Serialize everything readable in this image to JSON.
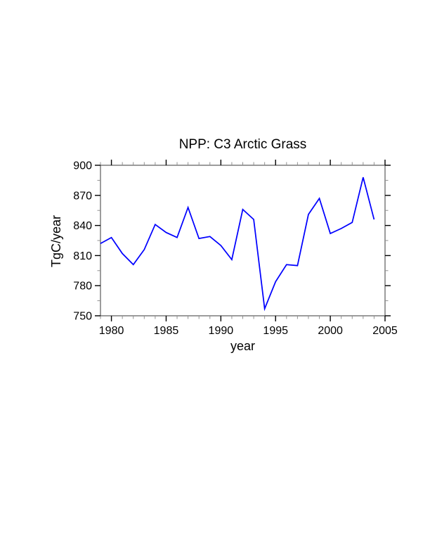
{
  "page": {
    "background": "#ffffff"
  },
  "chart_data": {
    "type": "line",
    "title": "NPP: C3 Arctic Grass",
    "xlabel": "year",
    "ylabel": "TgC/year",
    "x": [
      1979,
      1980,
      1981,
      1982,
      1983,
      1984,
      1985,
      1986,
      1987,
      1988,
      1989,
      1990,
      1991,
      1992,
      1993,
      1994,
      1995,
      1996,
      1997,
      1998,
      1999,
      2000,
      2001,
      2002,
      2003,
      2004
    ],
    "series": [
      {
        "name": "NPP C3 Arctic Grass",
        "values": [
          822,
          828,
          812,
          801,
          816,
          841,
          833,
          828,
          858,
          827,
          829,
          820,
          806,
          856,
          846,
          757,
          784,
          801,
          800,
          851,
          867,
          832,
          837,
          843,
          888,
          846
        ],
        "color": "#0000ff"
      }
    ],
    "xlim": [
      1979,
      2005
    ],
    "ylim": [
      750,
      900
    ],
    "xticks_major": [
      1980,
      1985,
      1990,
      1995,
      2000,
      2005
    ],
    "xtick_minor_step": 1,
    "yticks_major": [
      750,
      780,
      810,
      840,
      870,
      900
    ],
    "yticks_minor": [
      765,
      795,
      825,
      855,
      885
    ],
    "grid": false,
    "legend": "none"
  },
  "style": {
    "line_color": "#0000ff",
    "frame_color": "#5a5a5a",
    "major_tick_color": "#000000",
    "minor_tick_color": "#8f8f8f",
    "text_color": "#000000"
  }
}
